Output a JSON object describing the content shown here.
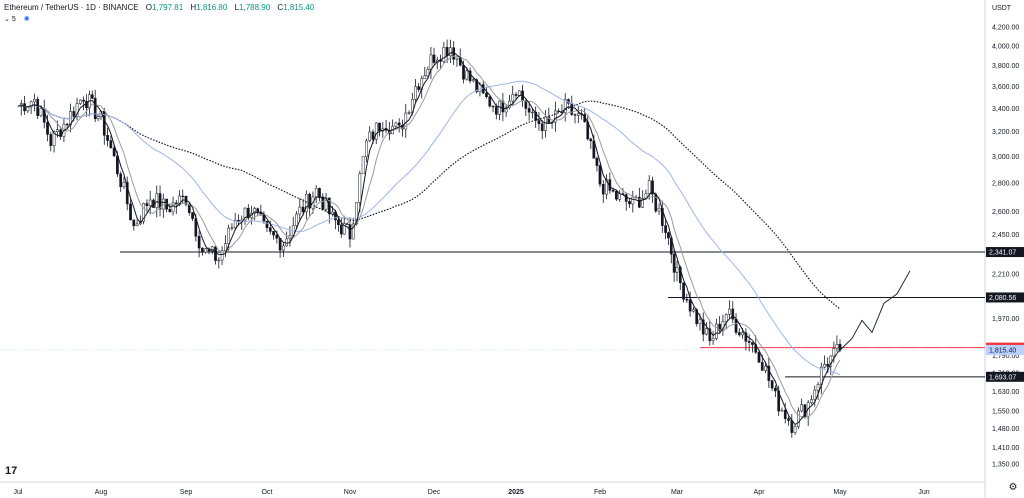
{
  "legend": {
    "symbol": "Ethereum / TetherUS · 1D · BINANCE",
    "o_label": "O",
    "o": "1,797.81",
    "h_label": "H",
    "h": "1,816.80",
    "l_label": "L",
    "l": "1,788.90",
    "c_label": "C",
    "c": "1,815.40",
    "sub_count": "5",
    "settings_icon": "chevron-down-icon",
    "indicator_icon": "visibility-icon"
  },
  "colors": {
    "up": "#089981",
    "down": "#131722",
    "price_line": "#2962ff",
    "red_label": "#f23645",
    "ma_fast": "#131722",
    "ma_slow": "#9b9b9b",
    "ma_blue": "#9fb5e8",
    "ma_dotted": "#131722"
  },
  "chart_data": {
    "type": "candlestick",
    "currency": "USDT",
    "x_ticks": [
      "Jul",
      "Aug",
      "Sep",
      "Oct",
      "Nov",
      "Dec",
      "2025",
      "Feb",
      "Mar",
      "Apr",
      "May",
      "Jun"
    ],
    "y_ticks": [
      "4,200.00",
      "4,000.00",
      "3,800.00",
      "3,600.00",
      "3,400.00",
      "3,200.00",
      "3,000.00",
      "2,800.00",
      "2,600.00",
      "2,450.00",
      "2,210.00",
      "1,970.00",
      "1,790.00",
      "1,710.00",
      "1,630.00",
      "1,550.00",
      "1,480.00",
      "1,410.00",
      "1,350.00"
    ],
    "y_tick_values": [
      4200,
      4000,
      3800,
      3600,
      3400,
      3200,
      3000,
      2800,
      2600,
      2450,
      2210,
      1970,
      1790,
      1710,
      1630,
      1550,
      1480,
      1410,
      1350
    ],
    "price_axis_log": true,
    "levels": [
      {
        "value": 2341.07,
        "label": "2,341.07"
      },
      {
        "value": 2080.56,
        "label": "2,080.56"
      },
      {
        "value": 1693.07,
        "label": "1,693.07"
      }
    ],
    "red_level": {
      "value": 1826.56,
      "label": "1,826.56"
    },
    "current_price": {
      "value": 1815.4,
      "label": "1,815.40"
    },
    "close_path": [
      [
        "Jul",
        3420
      ],
      [
        "Jul",
        3480
      ],
      [
        "Jul",
        3120
      ],
      [
        "Jul",
        3300
      ],
      [
        "Jul",
        3520
      ],
      [
        "Aug",
        3300
      ],
      [
        "Aug",
        2900
      ],
      [
        "Aug",
        2500
      ],
      [
        "Aug",
        2700
      ],
      [
        "Aug",
        2620
      ],
      [
        "Sep",
        2700
      ],
      [
        "Sep",
        2350
      ],
      [
        "Sep",
        2300
      ],
      [
        "Sep",
        2550
      ],
      [
        "Sep",
        2620
      ],
      [
        "Oct",
        2450
      ],
      [
        "Oct",
        2400
      ],
      [
        "Oct",
        2600
      ],
      [
        "Oct",
        2750
      ],
      [
        "Oct",
        2550
      ],
      [
        "Nov",
        2450
      ],
      [
        "Nov",
        3100
      ],
      [
        "Nov",
        3300
      ],
      [
        "Nov",
        3200
      ],
      [
        "Nov",
        3600
      ],
      [
        "Dec",
        3900
      ],
      [
        "Dec",
        4000
      ],
      [
        "Dec",
        3700
      ],
      [
        "Dec",
        3500
      ],
      [
        "Dec",
        3400
      ],
      [
        "2025",
        3600
      ],
      [
        "2025",
        3300
      ],
      [
        "2025",
        3250
      ],
      [
        "2025",
        3400
      ],
      [
        "2025",
        3300
      ],
      [
        "Feb",
        2800
      ],
      [
        "Feb",
        2700
      ],
      [
        "Feb",
        2650
      ],
      [
        "Feb",
        2750
      ],
      [
        "Feb",
        2500
      ],
      [
        "Mar",
        2200
      ],
      [
        "Mar",
        2000
      ],
      [
        "Mar",
        1850
      ],
      [
        "Mar",
        2000
      ],
      [
        "Mar",
        1900
      ],
      [
        "Apr",
        1800
      ],
      [
        "Apr",
        1600
      ],
      [
        "Apr",
        1500
      ],
      [
        "Apr",
        1580
      ],
      [
        "Apr",
        1750
      ],
      [
        "May",
        1815
      ]
    ],
    "projection": [
      [
        0,
        1815
      ],
      [
        1,
        1870
      ],
      [
        2,
        1960
      ],
      [
        3,
        1900
      ],
      [
        4,
        2050
      ],
      [
        5,
        2100
      ],
      [
        6,
        2230
      ]
    ]
  }
}
